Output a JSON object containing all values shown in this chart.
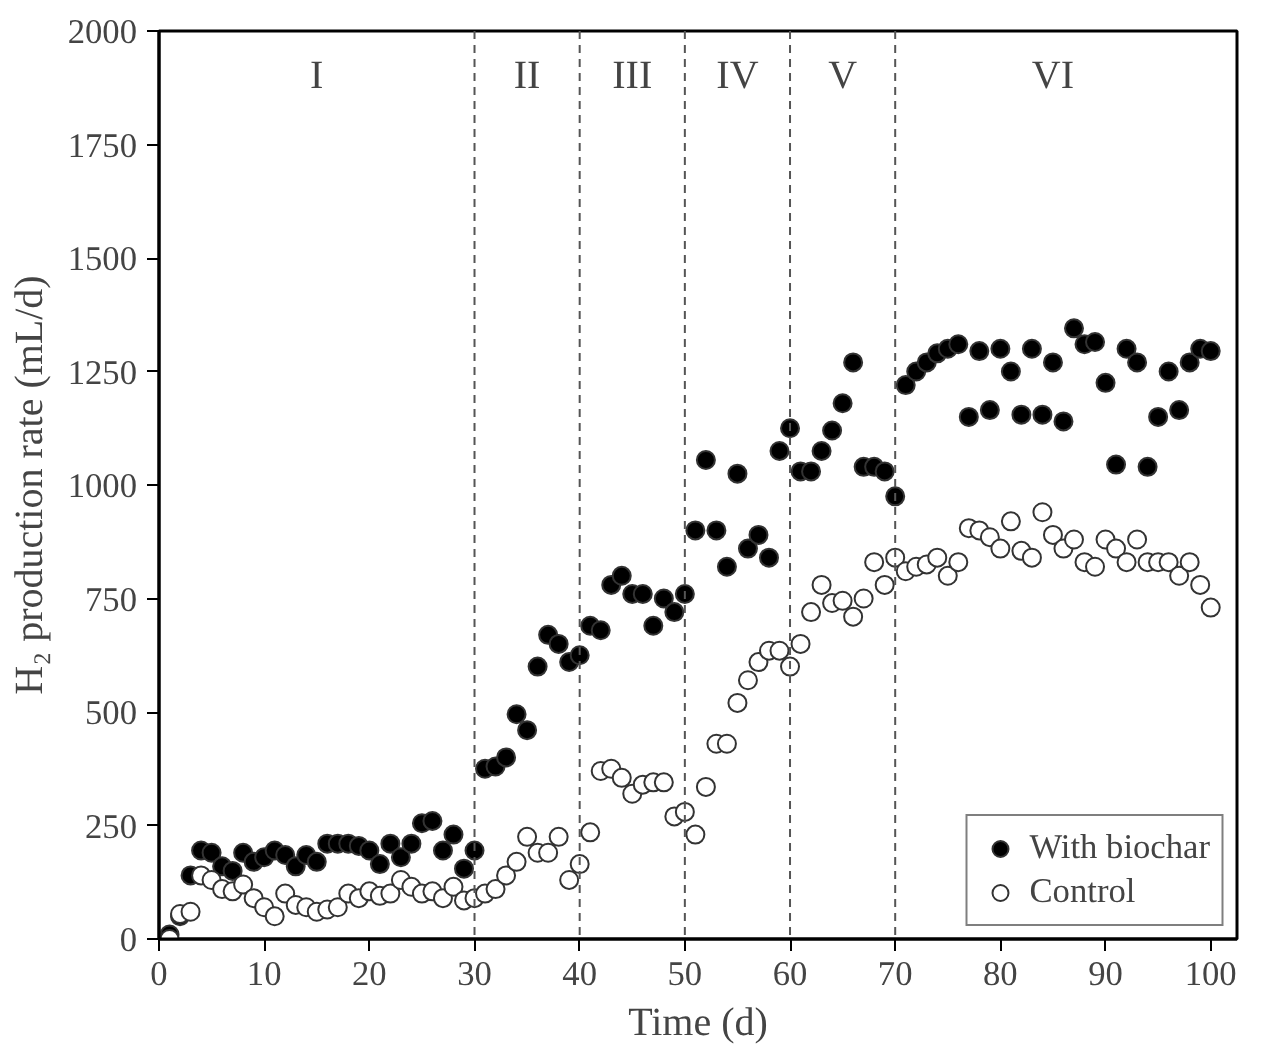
{
  "chart_data": {
    "type": "scatter",
    "xlabel": "Time (d)",
    "ylabel": "H₂ production rate (mL/d)",
    "xlim": [
      0,
      102.5
    ],
    "ylim": [
      0,
      2000
    ],
    "xticks": [
      0,
      10,
      20,
      30,
      40,
      50,
      60,
      70,
      80,
      90,
      100
    ],
    "yticks": [
      0,
      250,
      500,
      750,
      1000,
      1250,
      1500,
      1750,
      2000
    ],
    "x": [
      1,
      2,
      3,
      4,
      5,
      6,
      7,
      8,
      9,
      10,
      11,
      12,
      13,
      14,
      15,
      16,
      17,
      18,
      19,
      20,
      21,
      22,
      23,
      24,
      25,
      26,
      27,
      28,
      29,
      30,
      31,
      32,
      33,
      34,
      35,
      36,
      37,
      38,
      39,
      40,
      41,
      42,
      43,
      44,
      45,
      46,
      47,
      48,
      49,
      50,
      51,
      52,
      53,
      54,
      55,
      56,
      57,
      58,
      59,
      60,
      61,
      62,
      63,
      64,
      65,
      66,
      67,
      68,
      69,
      70,
      71,
      72,
      73,
      74,
      75,
      76,
      77,
      78,
      79,
      80,
      81,
      82,
      83,
      84,
      85,
      86,
      87,
      88,
      89,
      90,
      91,
      92,
      93,
      94,
      95,
      96,
      97,
      98,
      99,
      100
    ],
    "series": [
      {
        "name": "With biochar",
        "color": "#000000",
        "values": [
          10,
          50,
          140,
          195,
          190,
          160,
          150,
          190,
          170,
          180,
          195,
          185,
          160,
          185,
          170,
          210,
          210,
          210,
          205,
          195,
          165,
          210,
          180,
          210,
          255,
          260,
          195,
          230,
          155,
          195,
          375,
          380,
          400,
          495,
          460,
          600,
          670,
          650,
          610,
          625,
          690,
          680,
          780,
          800,
          760,
          760,
          690,
          750,
          720,
          760,
          900,
          1055,
          900,
          820,
          1025,
          860,
          890,
          840,
          1075,
          1125,
          1030,
          1030,
          1075,
          1120,
          1180,
          1270,
          1040,
          1040,
          1030,
          975,
          1220,
          1250,
          1270,
          1290,
          1300,
          1310,
          1150,
          1295,
          1165,
          1300,
          1250,
          1155,
          1300,
          1155,
          1270,
          1140,
          1345,
          1310,
          1315,
          1225,
          1045,
          1300,
          1270,
          1040,
          1150,
          1250,
          1165,
          1270,
          1300,
          1295
        ]
      },
      {
        "name": "Control",
        "color": "#ffffff",
        "values": [
          0,
          55,
          60,
          140,
          130,
          110,
          105,
          120,
          90,
          70,
          50,
          100,
          75,
          70,
          60,
          65,
          70,
          100,
          90,
          105,
          95,
          100,
          130,
          115,
          100,
          105,
          90,
          115,
          85,
          90,
          100,
          110,
          140,
          170,
          225,
          190,
          190,
          225,
          130,
          165,
          235,
          370,
          375,
          355,
          320,
          340,
          345,
          345,
          270,
          280,
          230,
          335,
          430,
          430,
          520,
          570,
          610,
          635,
          635,
          600,
          650,
          720,
          780,
          740,
          745,
          710,
          750,
          830,
          780,
          840,
          810,
          820,
          825,
          840,
          800,
          830,
          905,
          900,
          885,
          860,
          920,
          855,
          840,
          940,
          890,
          860,
          880,
          830,
          820,
          880,
          860,
          830,
          880,
          830,
          830,
          830,
          800,
          830,
          780,
          730
        ]
      }
    ],
    "marker": "circle",
    "legend": "bottom right",
    "grid": false,
    "ref_lines": [
      {
        "axis": "x",
        "value": 30,
        "label": null,
        "color": "#555555",
        "line_style": "dashed"
      },
      {
        "axis": "x",
        "value": 40,
        "label": null,
        "color": "#555555",
        "line_style": "dashed"
      },
      {
        "axis": "x",
        "value": 50,
        "label": null,
        "color": "#555555",
        "line_style": "dashed"
      },
      {
        "axis": "x",
        "value": 60,
        "label": null,
        "color": "#555555",
        "line_style": "dashed"
      },
      {
        "axis": "x",
        "value": 70,
        "label": null,
        "color": "#555555",
        "line_style": "dashed"
      }
    ],
    "annotations": [
      "I",
      "II",
      "III",
      "IV",
      "V",
      "VI"
    ]
  }
}
